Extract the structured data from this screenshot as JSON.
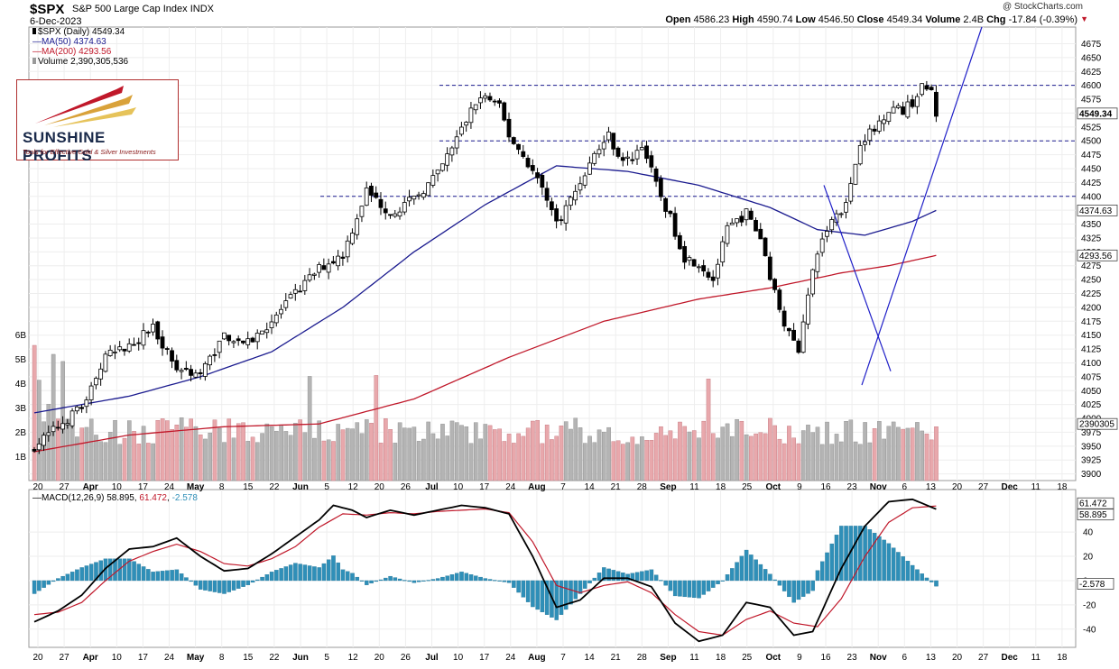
{
  "header": {
    "symbol": "$SPX",
    "name": "S&P 500 Large Cap Index",
    "exchange": "INDX",
    "date": "6-Dec-2023",
    "source": "@ StockCharts.com",
    "quote": {
      "open_label": "Open",
      "open": "4586.23",
      "high_label": "High",
      "high": "4590.74",
      "low_label": "Low",
      "low": "4546.50",
      "close_label": "Close",
      "close": "4549.34",
      "volume_label": "Volume",
      "volume": "2.4B",
      "chg_label": "Chg",
      "chg": "-17.84 (-0.39%)"
    }
  },
  "legend": {
    "price": "$SPX (Daily) 4549.34",
    "ma50": "MA(50) 4374.63",
    "ma200": "MA(200) 4293.56",
    "volume": "Volume 2,390,305,536",
    "macd_name": "MACD(12,26,9)",
    "macd_value": "58.895",
    "macd_signal": "61.472",
    "macd_hist": "-2.578"
  },
  "logo": {
    "name": "SUNSHINE PROFITS",
    "tagline": "Tools for Effective Gold & Silver Investments"
  },
  "colors": {
    "ma50": "#1b1b8f",
    "ma200": "#c0182a",
    "macd_hist": "#2f8fb8",
    "vol_up": "#b4b4b4",
    "vol_down": "#e8a8ac",
    "trend": "#2020c8"
  },
  "chart_data": [
    {
      "type": "candlestick",
      "title": "$SPX (Daily)",
      "ylim": [
        3888,
        4705
      ],
      "y_ticks": [
        3900,
        3925,
        3950,
        3975,
        4000,
        4025,
        4050,
        4075,
        4100,
        4125,
        4150,
        4175,
        4200,
        4225,
        4250,
        4275,
        4300,
        4325,
        4350,
        4375,
        4400,
        4425,
        4450,
        4475,
        4500,
        4525,
        4550,
        4575,
        4600,
        4625,
        4650,
        4675
      ],
      "volume_ticks": [
        "1B",
        "2B",
        "3B",
        "4B",
        "5B",
        "6B"
      ],
      "x_tick_labels": [
        "20",
        "27",
        "Apr",
        "10",
        "17",
        "24",
        "May",
        "8",
        "15",
        "22",
        "Jun",
        "5",
        "12",
        "20",
        "26",
        "Jul",
        "10",
        "17",
        "24",
        "Aug",
        "7",
        "14",
        "21",
        "28",
        "Sep",
        "11",
        "18",
        "25",
        "Oct",
        "9",
        "16",
        "23",
        "Nov",
        "6",
        "13",
        "20",
        "27",
        "Dec",
        "11",
        "18"
      ],
      "price_tags": [
        "4549.34",
        "4374.63",
        "4293.56",
        "2390305"
      ],
      "horizontal_levels": [
        4600,
        4500,
        4400
      ],
      "anchors": [
        {
          "i": 0,
          "c": 3950
        },
        {
          "i": 5,
          "c": 3985
        },
        {
          "i": 10,
          "c": 4020
        },
        {
          "i": 15,
          "c": 4110
        },
        {
          "i": 20,
          "c": 4130
        },
        {
          "i": 25,
          "c": 4165
        },
        {
          "i": 30,
          "c": 4090
        },
        {
          "i": 35,
          "c": 4080
        },
        {
          "i": 40,
          "c": 4150
        },
        {
          "i": 45,
          "c": 4135
        },
        {
          "i": 50,
          "c": 4175
        },
        {
          "i": 55,
          "c": 4225
        },
        {
          "i": 60,
          "c": 4270
        },
        {
          "i": 65,
          "c": 4295
        },
        {
          "i": 70,
          "c": 4410
        },
        {
          "i": 75,
          "c": 4370
        },
        {
          "i": 80,
          "c": 4395
        },
        {
          "i": 85,
          "c": 4440
        },
        {
          "i": 90,
          "c": 4520
        },
        {
          "i": 93,
          "c": 4570
        },
        {
          "i": 95,
          "c": 4580
        },
        {
          "i": 98,
          "c": 4560
        },
        {
          "i": 100,
          "c": 4510
        },
        {
          "i": 104,
          "c": 4460
        },
        {
          "i": 108,
          "c": 4400
        },
        {
          "i": 110,
          "c": 4350
        },
        {
          "i": 114,
          "c": 4410
        },
        {
          "i": 118,
          "c": 4475
        },
        {
          "i": 121,
          "c": 4510
        },
        {
          "i": 124,
          "c": 4460
        },
        {
          "i": 126,
          "c": 4470
        },
        {
          "i": 128,
          "c": 4495
        },
        {
          "i": 131,
          "c": 4420
        },
        {
          "i": 134,
          "c": 4360
        },
        {
          "i": 137,
          "c": 4290
        },
        {
          "i": 140,
          "c": 4280
        },
        {
          "i": 143,
          "c": 4250
        },
        {
          "i": 146,
          "c": 4340
        },
        {
          "i": 150,
          "c": 4370
        },
        {
          "i": 153,
          "c": 4325
        },
        {
          "i": 156,
          "c": 4225
        },
        {
          "i": 159,
          "c": 4150
        },
        {
          "i": 161,
          "c": 4125
        },
        {
          "i": 162,
          "c": 4180
        },
        {
          "i": 165,
          "c": 4300
        },
        {
          "i": 168,
          "c": 4360
        },
        {
          "i": 170,
          "c": 4375
        },
        {
          "i": 172,
          "c": 4420
        },
        {
          "i": 174,
          "c": 4500
        },
        {
          "i": 177,
          "c": 4520
        },
        {
          "i": 180,
          "c": 4560
        },
        {
          "i": 183,
          "c": 4555
        },
        {
          "i": 185,
          "c": 4570
        },
        {
          "i": 187,
          "c": 4595
        },
        {
          "i": 189,
          "c": 4590
        },
        {
          "i": 190,
          "c": 4549
        }
      ],
      "ma50": [
        {
          "i": 0,
          "v": 4010
        },
        {
          "i": 20,
          "v": 4040
        },
        {
          "i": 35,
          "v": 4075
        },
        {
          "i": 50,
          "v": 4120
        },
        {
          "i": 65,
          "v": 4200
        },
        {
          "i": 80,
          "v": 4300
        },
        {
          "i": 95,
          "v": 4385
        },
        {
          "i": 110,
          "v": 4455
        },
        {
          "i": 125,
          "v": 4445
        },
        {
          "i": 140,
          "v": 4420
        },
        {
          "i": 155,
          "v": 4380
        },
        {
          "i": 165,
          "v": 4340
        },
        {
          "i": 175,
          "v": 4330
        },
        {
          "i": 185,
          "v": 4355
        },
        {
          "i": 190,
          "v": 4374.63
        }
      ],
      "ma200": [
        {
          "i": 0,
          "v": 3940
        },
        {
          "i": 20,
          "v": 3970
        },
        {
          "i": 40,
          "v": 3985
        },
        {
          "i": 60,
          "v": 3990
        },
        {
          "i": 80,
          "v": 4035
        },
        {
          "i": 100,
          "v": 4110
        },
        {
          "i": 120,
          "v": 4175
        },
        {
          "i": 140,
          "v": 4215
        },
        {
          "i": 155,
          "v": 4235
        },
        {
          "i": 170,
          "v": 4262
        },
        {
          "i": 180,
          "v": 4275
        },
        {
          "i": 190,
          "v": 4293.56
        }
      ]
    },
    {
      "type": "line",
      "title": "MACD(12,26,9)",
      "ylim": [
        -55,
        75
      ],
      "y_ticks": [
        -40,
        -20,
        0,
        20,
        40
      ],
      "tags": [
        "61.472",
        "58.895",
        "-2.578"
      ],
      "macd": [
        {
          "i": 0,
          "v": -34
        },
        {
          "i": 5,
          "v": -25
        },
        {
          "i": 10,
          "v": -12
        },
        {
          "i": 15,
          "v": 10
        },
        {
          "i": 20,
          "v": 26
        },
        {
          "i": 25,
          "v": 28
        },
        {
          "i": 30,
          "v": 35
        },
        {
          "i": 35,
          "v": 20
        },
        {
          "i": 40,
          "v": 8
        },
        {
          "i": 45,
          "v": 10
        },
        {
          "i": 50,
          "v": 22
        },
        {
          "i": 55,
          "v": 36
        },
        {
          "i": 60,
          "v": 50
        },
        {
          "i": 63,
          "v": 62
        },
        {
          "i": 67,
          "v": 58
        },
        {
          "i": 70,
          "v": 52
        },
        {
          "i": 75,
          "v": 58
        },
        {
          "i": 80,
          "v": 54
        },
        {
          "i": 85,
          "v": 58
        },
        {
          "i": 90,
          "v": 62
        },
        {
          "i": 95,
          "v": 60
        },
        {
          "i": 100,
          "v": 55
        },
        {
          "i": 105,
          "v": 20
        },
        {
          "i": 110,
          "v": -22
        },
        {
          "i": 115,
          "v": -16
        },
        {
          "i": 120,
          "v": 2
        },
        {
          "i": 125,
          "v": 2
        },
        {
          "i": 130,
          "v": -5
        },
        {
          "i": 135,
          "v": -35
        },
        {
          "i": 140,
          "v": -50
        },
        {
          "i": 145,
          "v": -45
        },
        {
          "i": 150,
          "v": -18
        },
        {
          "i": 155,
          "v": -22
        },
        {
          "i": 160,
          "v": -45
        },
        {
          "i": 164,
          "v": -42
        },
        {
          "i": 170,
          "v": 10
        },
        {
          "i": 175,
          "v": 45
        },
        {
          "i": 180,
          "v": 65
        },
        {
          "i": 185,
          "v": 67
        },
        {
          "i": 190,
          "v": 58.895
        }
      ],
      "signal": [
        {
          "i": 0,
          "v": -28
        },
        {
          "i": 5,
          "v": -26
        },
        {
          "i": 10,
          "v": -18
        },
        {
          "i": 15,
          "v": 0
        },
        {
          "i": 20,
          "v": 16
        },
        {
          "i": 25,
          "v": 24
        },
        {
          "i": 30,
          "v": 30
        },
        {
          "i": 35,
          "v": 24
        },
        {
          "i": 40,
          "v": 14
        },
        {
          "i": 45,
          "v": 12
        },
        {
          "i": 50,
          "v": 18
        },
        {
          "i": 55,
          "v": 28
        },
        {
          "i": 60,
          "v": 44
        },
        {
          "i": 65,
          "v": 55
        },
        {
          "i": 70,
          "v": 54
        },
        {
          "i": 75,
          "v": 56
        },
        {
          "i": 80,
          "v": 55
        },
        {
          "i": 85,
          "v": 57
        },
        {
          "i": 90,
          "v": 58
        },
        {
          "i": 95,
          "v": 59
        },
        {
          "i": 100,
          "v": 56
        },
        {
          "i": 105,
          "v": 32
        },
        {
          "i": 110,
          "v": -4
        },
        {
          "i": 115,
          "v": -10
        },
        {
          "i": 120,
          "v": -4
        },
        {
          "i": 125,
          "v": -1
        },
        {
          "i": 130,
          "v": -10
        },
        {
          "i": 135,
          "v": -28
        },
        {
          "i": 140,
          "v": -42
        },
        {
          "i": 145,
          "v": -45
        },
        {
          "i": 150,
          "v": -32
        },
        {
          "i": 155,
          "v": -25
        },
        {
          "i": 160,
          "v": -35
        },
        {
          "i": 165,
          "v": -38
        },
        {
          "i": 170,
          "v": -15
        },
        {
          "i": 175,
          "v": 20
        },
        {
          "i": 180,
          "v": 48
        },
        {
          "i": 185,
          "v": 60
        },
        {
          "i": 190,
          "v": 61.472
        }
      ]
    }
  ]
}
